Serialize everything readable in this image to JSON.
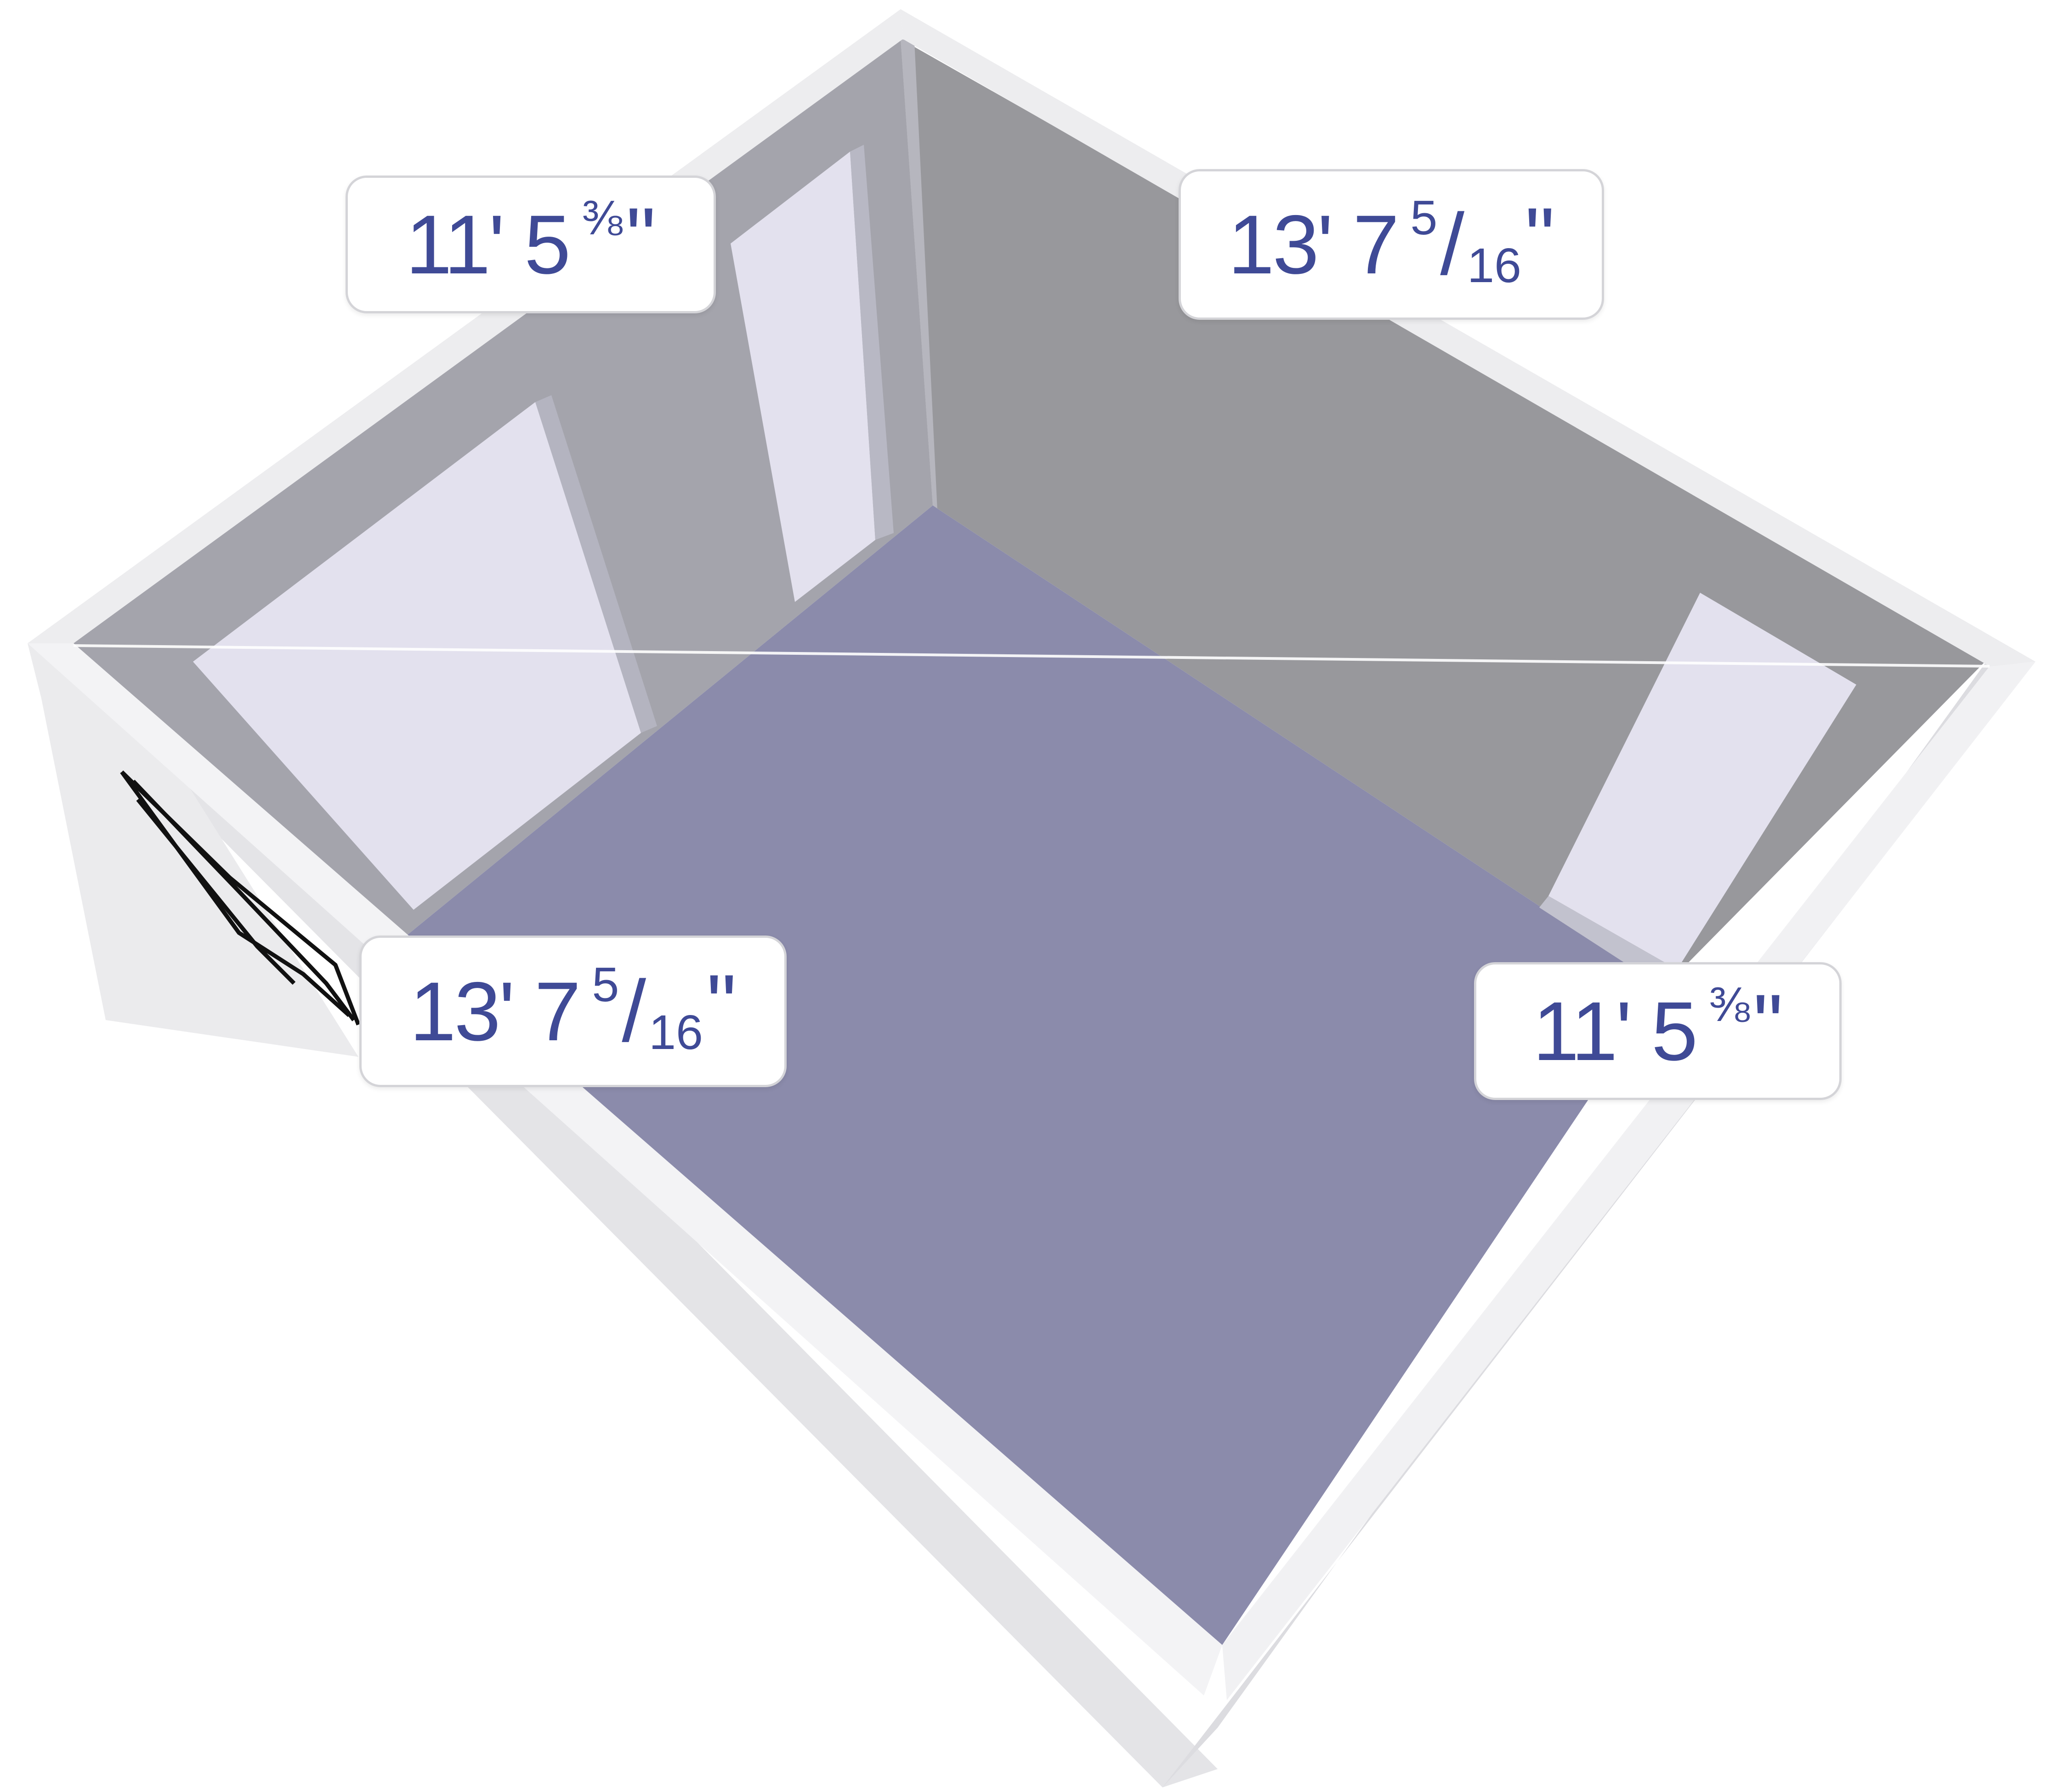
{
  "colors": {
    "floor": "#8b8bab",
    "back_left_wall": "#a4a4ac",
    "back_right_wall": "#98989c",
    "wall_top": "#ececee",
    "outer_wall": "#e6e6e8",
    "opening": "#e3e1ee",
    "label_text": "#3f4a96",
    "label_border": "#d4d4d8"
  },
  "dimensions": {
    "top_left": {
      "whole": "11' 5",
      "fraction": "⅜",
      "inch_mark": "\""
    },
    "top_right": {
      "whole": "13' 7",
      "numerator": "5",
      "denominator": "16",
      "inch_mark": "\""
    },
    "bottom_left": {
      "whole": "13' 7",
      "numerator": "5",
      "denominator": "16",
      "inch_mark": "\""
    },
    "bottom_right": {
      "whole": "11' 5",
      "fraction": "⅜",
      "inch_mark": "\""
    }
  }
}
